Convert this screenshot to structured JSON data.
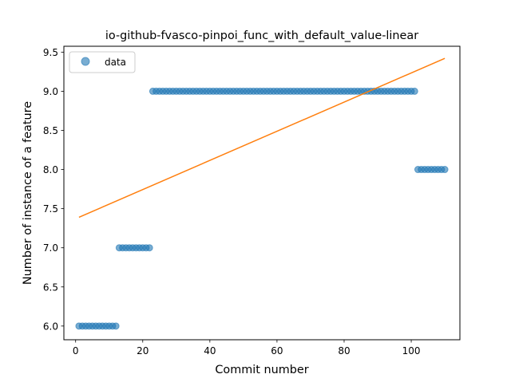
{
  "chart_data": {
    "type": "scatter",
    "title": "io-github-fvasco-pinpoi_func_with_default_value-linear",
    "xlabel": "Commit number",
    "ylabel": "Number of instance of a feature",
    "xlim": [
      -3.5,
      114.5
    ],
    "ylim": [
      5.825,
      9.575
    ],
    "xticks": [
      0,
      20,
      40,
      60,
      80,
      100
    ],
    "yticks": [
      6.0,
      6.5,
      7.0,
      7.5,
      8.0,
      8.5,
      9.0,
      9.5
    ],
    "ytick_labels": [
      "6.0",
      "6.5",
      "7.0",
      "7.5",
      "8.0",
      "8.5",
      "9.0",
      "9.5"
    ],
    "grid": false,
    "legend_position": "top-left",
    "series": [
      {
        "name": "data",
        "kind": "points",
        "color": "#1f77b4",
        "segments": [
          {
            "x_start": 1,
            "x_end": 12,
            "y": 6.0
          },
          {
            "x_start": 13,
            "x_end": 22,
            "y": 7.0
          },
          {
            "x_start": 23,
            "x_end": 101,
            "y": 9.0
          },
          {
            "x_start": 102,
            "x_end": 110,
            "y": 8.0
          }
        ]
      },
      {
        "kind": "line",
        "color": "#ff7f0e",
        "x": [
          1,
          110
        ],
        "y": [
          7.39,
          9.42
        ]
      }
    ]
  }
}
